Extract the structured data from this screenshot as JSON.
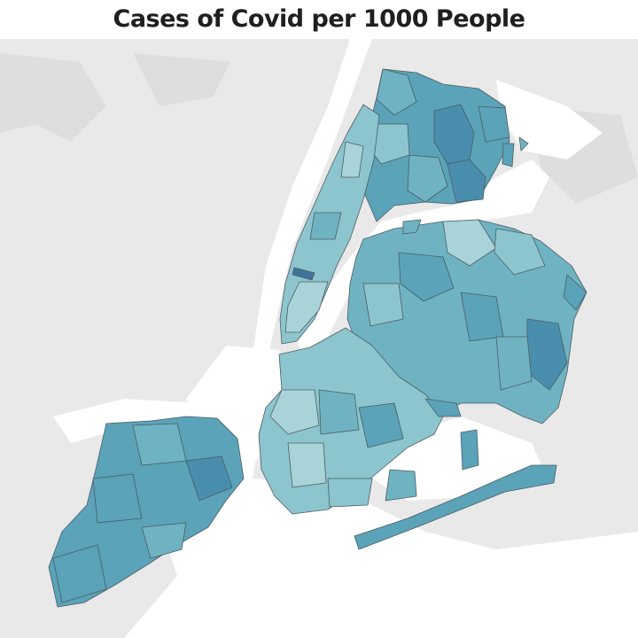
{
  "title": "Cases of Covid per 1000 People",
  "colors": {
    "background": "#ffffff",
    "land": "#e9e9e9",
    "water": "#ffffff",
    "border": "#4d5c63",
    "scale": [
      "#a8d3d8",
      "#8cc5ce",
      "#6fb3c3",
      "#5aa3b9",
      "#4a8eae",
      "#3f739c"
    ]
  },
  "regions": [
    {
      "name": "Bronx",
      "level": 3
    },
    {
      "name": "Manhattan",
      "level": 1
    },
    {
      "name": "Queens",
      "level": 2
    },
    {
      "name": "Brooklyn",
      "level": 1
    },
    {
      "name": "Staten Island",
      "level": 3
    }
  ]
}
